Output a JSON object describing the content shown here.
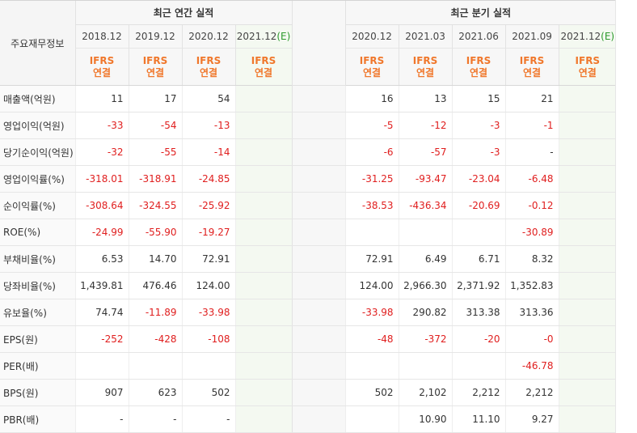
{
  "header": {
    "label": "주요재무정보",
    "annual_title": "최근 연간 실적",
    "quarter_title": "최근 분기 실적",
    "annual_periods": [
      {
        "date": "2018.12",
        "mark": ""
      },
      {
        "date": "2019.12",
        "mark": ""
      },
      {
        "date": "2020.12",
        "mark": ""
      },
      {
        "date": "2021.12",
        "mark": "(E)"
      }
    ],
    "quarter_periods": [
      {
        "date": "2020.12",
        "mark": ""
      },
      {
        "date": "2021.03",
        "mark": ""
      },
      {
        "date": "2021.06",
        "mark": ""
      },
      {
        "date": "2021.09",
        "mark": ""
      },
      {
        "date": "2021.12",
        "mark": "(E)"
      }
    ],
    "ifrs_line1": "IFRS",
    "ifrs_line2": "연결"
  },
  "rows": [
    {
      "label": "매출액(억원)",
      "annual": [
        "11",
        "17",
        "54",
        ""
      ],
      "quarter": [
        "16",
        "13",
        "15",
        "21",
        ""
      ]
    },
    {
      "label": "영업이익(억원)",
      "annual": [
        "-33",
        "-54",
        "-13",
        ""
      ],
      "quarter": [
        "-5",
        "-12",
        "-3",
        "-1",
        ""
      ]
    },
    {
      "label": "당기순이익(억원)",
      "annual": [
        "-32",
        "-55",
        "-14",
        ""
      ],
      "quarter": [
        "-6",
        "-57",
        "-3",
        "-",
        ""
      ]
    },
    {
      "label": "영업이익률(%)",
      "annual": [
        "-318.01",
        "-318.91",
        "-24.85",
        ""
      ],
      "quarter": [
        "-31.25",
        "-93.47",
        "-23.04",
        "-6.48",
        ""
      ]
    },
    {
      "label": "순이익률(%)",
      "annual": [
        "-308.64",
        "-324.55",
        "-25.92",
        ""
      ],
      "quarter": [
        "-38.53",
        "-436.34",
        "-20.69",
        "-0.12",
        ""
      ]
    },
    {
      "label": "ROE(%)",
      "annual": [
        "-24.99",
        "-55.90",
        "-19.27",
        ""
      ],
      "quarter": [
        "",
        "",
        "",
        "-30.89",
        ""
      ]
    },
    {
      "label": "부채비율(%)",
      "annual": [
        "6.53",
        "14.70",
        "72.91",
        ""
      ],
      "quarter": [
        "72.91",
        "6.49",
        "6.71",
        "8.32",
        ""
      ]
    },
    {
      "label": "당좌비율(%)",
      "annual": [
        "1,439.81",
        "476.46",
        "124.00",
        ""
      ],
      "quarter": [
        "124.00",
        "2,966.30",
        "2,371.92",
        "1,352.83",
        ""
      ]
    },
    {
      "label": "유보율(%)",
      "annual": [
        "74.74",
        "-11.89",
        "-33.98",
        ""
      ],
      "quarter": [
        "-33.98",
        "290.82",
        "313.38",
        "313.36",
        ""
      ]
    },
    {
      "label": "EPS(원)",
      "annual": [
        "-252",
        "-428",
        "-108",
        ""
      ],
      "quarter": [
        "-48",
        "-372",
        "-20",
        "-0",
        ""
      ]
    },
    {
      "label": "PER(배)",
      "annual": [
        "",
        "",
        "",
        ""
      ],
      "quarter": [
        "",
        "",
        "",
        "-46.78",
        ""
      ]
    },
    {
      "label": "BPS(원)",
      "annual": [
        "907",
        "623",
        "502",
        ""
      ],
      "quarter": [
        "502",
        "2,102",
        "2,212",
        "2,212",
        ""
      ]
    },
    {
      "label": "PBR(배)",
      "annual": [
        "-",
        "-",
        "-",
        ""
      ],
      "quarter": [
        "",
        "10.90",
        "11.10",
        "9.27",
        ""
      ]
    }
  ],
  "colors": {
    "negative": "#e01e1e",
    "ifrs": "#f0772b",
    "estimate_mark": "#2d9a2d",
    "estimate_bg": "#f4f9f1"
  }
}
